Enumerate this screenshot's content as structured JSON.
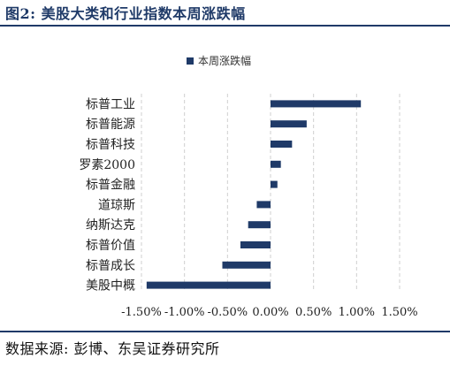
{
  "figure": {
    "title": "图2:  美股大类和行业指数本周涨跌幅",
    "source": "数据来源:  彭博、东吴证券研究所"
  },
  "chart_data": {
    "type": "bar",
    "orientation": "horizontal",
    "title": "",
    "xlabel": "",
    "ylabel": "",
    "categories": [
      "标普工业",
      "标普能源",
      "标普科技",
      "罗素2000",
      "标普金融",
      "道琼斯",
      "纳斯达克",
      "标普价值",
      "标普成长",
      "美股中概"
    ],
    "series": [
      {
        "name": "本周涨跌幅",
        "values": [
          1.05,
          0.42,
          0.25,
          0.12,
          0.08,
          -0.16,
          -0.26,
          -0.35,
          -0.56,
          -1.44
        ],
        "color": "#1f3a68"
      }
    ],
    "xlim": [
      -1.5,
      1.5
    ],
    "xticks": [
      -1.5,
      -1.0,
      -0.5,
      0.0,
      0.5,
      1.0,
      1.5
    ],
    "xtick_labels": [
      "-1.50%",
      "-1.00%",
      "-0.50%",
      "0.00%",
      "0.50%",
      "1.00%",
      "1.50%"
    ],
    "grid": "vertical-dashed",
    "legend_position": "top-center"
  }
}
